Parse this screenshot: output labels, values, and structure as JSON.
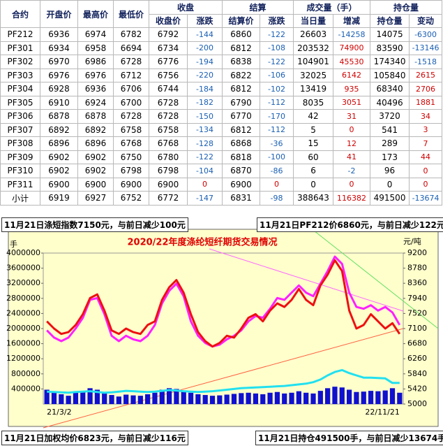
{
  "table": {
    "header": [
      {
        "label": "合约"
      },
      {
        "label": "开盘价"
      },
      {
        "label": "最高价"
      },
      {
        "label": "最低价"
      },
      {
        "label": "收盘",
        "sub": [
          "收盘价",
          "涨跌"
        ]
      },
      {
        "label": "结算",
        "sub": [
          "结算价",
          "涨跌"
        ]
      },
      {
        "label": "成交量（手）",
        "sub": [
          "当日量",
          "增减"
        ]
      },
      {
        "label": "持仓量",
        "sub": [
          "持仓量",
          "变动"
        ]
      }
    ],
    "rows": [
      [
        "PF212",
        6936,
        6974,
        6782,
        6792,
        -144,
        6860,
        -122,
        26603,
        -14258,
        14075,
        -6300
      ],
      [
        "PF301",
        6934,
        6958,
        6694,
        6734,
        -200,
        6812,
        -108,
        203532,
        74900,
        83590,
        -13146
      ],
      [
        "PF302",
        6970,
        6986,
        6728,
        6776,
        -194,
        6838,
        -122,
        104901,
        45530,
        174340,
        -1518
      ],
      [
        "PF303",
        6976,
        6976,
        6712,
        6756,
        -220,
        6822,
        -106,
        32025,
        6142,
        105840,
        2615
      ],
      [
        "PF304",
        6928,
        6936,
        6706,
        6744,
        -184,
        6812,
        -102,
        13419,
        935,
        68340,
        2706
      ],
      [
        "PF305",
        6910,
        6924,
        6700,
        6728,
        -182,
        6790,
        -112,
        8035,
        3051,
        40496,
        1881
      ],
      [
        "PF306",
        6878,
        6878,
        6728,
        6728,
        -150,
        6770,
        -170,
        42,
        31,
        3720,
        34
      ],
      [
        "PF307",
        6892,
        6892,
        6758,
        6758,
        -134,
        6812,
        -112,
        5,
        0,
        541,
        3
      ],
      [
        "PF308",
        6896,
        6896,
        6768,
        6768,
        -128,
        6868,
        -36,
        15,
        12,
        289,
        7
      ],
      [
        "PF309",
        6902,
        6902,
        6750,
        6780,
        -122,
        6818,
        -100,
        60,
        41,
        173,
        44
      ],
      [
        "PF310",
        6902,
        6902,
        6798,
        6798,
        -104,
        6870,
        -86,
        6,
        -2,
        96,
        0
      ],
      [
        "PF311",
        6900,
        6900,
        6900,
        6900,
        0,
        6900,
        0,
        0,
        0,
        0,
        0
      ],
      [
        "小计",
        6919,
        6927,
        6752,
        6772,
        -147,
        6831,
        -98,
        388643,
        116382,
        491500,
        -13674
      ]
    ]
  },
  "notes": [
    "11月21日涤短指数7150元，与前日减少100元",
    "11月21日PF212价6860元，与前日减少122元",
    "11月21日加权均价6823元，与前日减少116元",
    "11月21日持仓491500手，与前日减少13674手"
  ],
  "chart_data": {
    "type": "combo",
    "title": "2020/22年度涤纶短纤期货交易情况",
    "y_label": "手",
    "y2_label": "元/吨",
    "categories": [
      "21/3/2",
      null,
      null,
      null,
      null,
      null,
      null,
      null,
      null,
      null,
      null,
      null,
      null,
      null,
      null,
      null,
      null,
      null,
      null,
      null,
      null,
      null,
      null,
      null,
      null,
      null,
      null,
      null,
      null,
      null,
      null,
      null,
      null,
      null,
      null,
      null,
      null,
      null,
      null,
      null,
      null,
      null,
      null,
      null,
      null,
      null,
      null,
      null,
      null,
      "22/11/21"
    ],
    "ylim": [
      0,
      4000000
    ],
    "yticks": [
      400000,
      800000,
      1200000,
      1600000,
      2000000,
      2400000,
      2800000,
      3200000,
      3600000,
      4000000
    ],
    "y2lim": [
      5000,
      9200
    ],
    "y2ticks": [
      5000,
      5420,
      5840,
      6260,
      6680,
      7100,
      7520,
      7940,
      8360,
      8780,
      9200
    ],
    "series": [
      {
        "type": "bar",
        "color": "#1010d0",
        "values": [
          380000,
          300000,
          260000,
          220000,
          300000,
          350000,
          420000,
          380000,
          280000,
          240000,
          200000,
          250000,
          230000,
          220000,
          260000,
          300000,
          380000,
          420000,
          400000,
          350000,
          300000,
          260000,
          240000,
          220000,
          230000,
          250000,
          270000,
          290000,
          300000,
          280000,
          260000,
          300000,
          320000,
          280000,
          300000,
          340000,
          300000,
          280000,
          350000,
          420000,
          460000,
          440000,
          380000,
          320000,
          330000,
          350000,
          340000,
          360000,
          420000,
          300000
        ]
      },
      {
        "type": "line",
        "color": "#22e0f0",
        "values": [
          330000,
          320000,
          310000,
          300000,
          320000,
          330000,
          340000,
          320000,
          300000,
          310000,
          330000,
          350000,
          340000,
          330000,
          320000,
          330000,
          350000,
          370000,
          360000,
          340000,
          330000,
          320000,
          330000,
          340000,
          360000,
          380000,
          400000,
          420000,
          430000,
          440000,
          450000,
          460000,
          470000,
          480000,
          500000,
          520000,
          540000,
          580000,
          650000,
          760000,
          850000,
          900000,
          820000,
          760000,
          700000,
          700000,
          690000,
          680000,
          560000,
          560000
        ]
      },
      {
        "type": "line",
        "axis": "y2",
        "color": "#ff20ff",
        "values": [
          7050,
          6850,
          6750,
          6850,
          7100,
          7400,
          7900,
          7950,
          7500,
          6900,
          6750,
          6900,
          6800,
          6750,
          6900,
          7200,
          7800,
          8150,
          8350,
          8000,
          7300,
          6900,
          6700,
          6600,
          6650,
          6800,
          6900,
          7050,
          7300,
          7450,
          7400,
          7650,
          7950,
          7900,
          8100,
          8300,
          8100,
          8000,
          8350,
          8700,
          9100,
          8900,
          8100,
          7700,
          7650,
          7750,
          7600,
          7700,
          7550,
          7200
        ]
      },
      {
        "type": "line",
        "axis": "y2",
        "color": "#ee1010",
        "values": [
          7300,
          7100,
          6950,
          7000,
          7200,
          7500,
          7950,
          8050,
          7600,
          7050,
          6950,
          7100,
          7000,
          6950,
          7200,
          7300,
          7900,
          8250,
          8450,
          8100,
          7500,
          7000,
          6750,
          6600,
          6700,
          6900,
          6850,
          7100,
          7400,
          7500,
          7300,
          7600,
          7800,
          7700,
          7900,
          8200,
          7900,
          7750,
          8300,
          8600,
          9000,
          8700,
          7600,
          7100,
          7200,
          7500,
          7300,
          7100,
          7250,
          6950
        ]
      }
    ]
  }
}
